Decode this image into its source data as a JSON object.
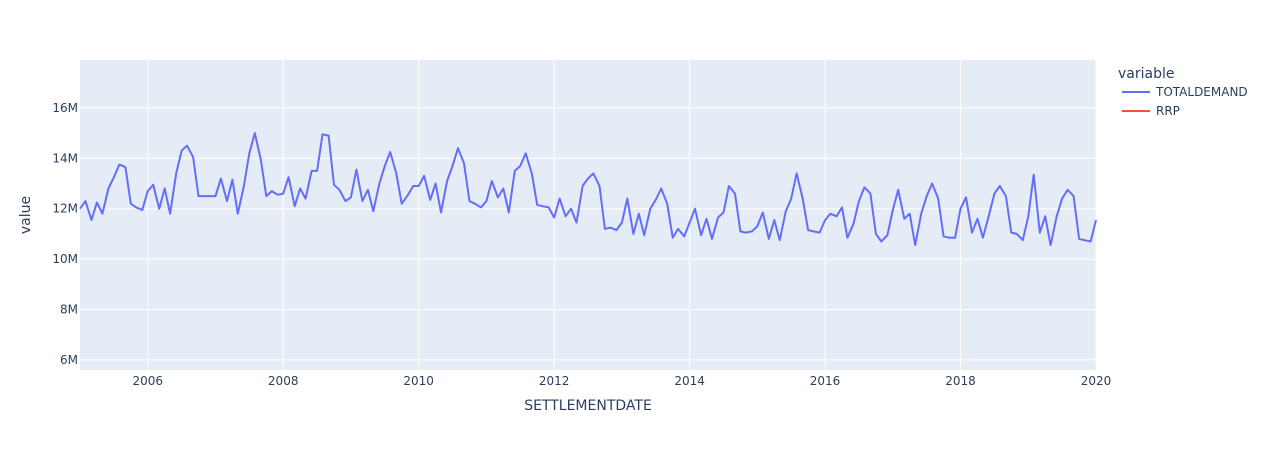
{
  "chart_data": {
    "type": "line",
    "title": "",
    "xlabel": "SETTLEMENTDATE",
    "ylabel": "value",
    "x_ticks": [
      "2006",
      "2008",
      "2010",
      "2012",
      "2014",
      "2016",
      "2018",
      "2020"
    ],
    "y_ticks": [
      "6M",
      "8M",
      "10M",
      "12M",
      "14M",
      "16M"
    ],
    "y_tick_values": [
      6,
      8,
      10,
      12,
      14,
      16
    ],
    "xlim": [
      2005.0,
      2020.0
    ],
    "ylim": [
      5.6,
      17.9
    ],
    "y_unit": "millions",
    "grid": true,
    "legend": {
      "title": "variable",
      "placement": "right"
    },
    "series": [
      {
        "name": "TOTALDEMAND",
        "color": "#636efa",
        "points": [
          [
            2005.0,
            12.0
          ],
          [
            2005.08,
            12.3
          ],
          [
            2005.17,
            11.55
          ],
          [
            2005.25,
            12.25
          ],
          [
            2005.33,
            11.8
          ],
          [
            2005.42,
            12.8
          ],
          [
            2005.5,
            13.25
          ],
          [
            2005.58,
            13.75
          ],
          [
            2005.67,
            13.65
          ],
          [
            2005.75,
            12.2
          ],
          [
            2005.83,
            12.05
          ],
          [
            2005.92,
            11.95
          ],
          [
            2006.0,
            12.7
          ],
          [
            2006.08,
            12.95
          ],
          [
            2006.17,
            12.0
          ],
          [
            2006.25,
            12.8
          ],
          [
            2006.33,
            11.8
          ],
          [
            2006.42,
            13.4
          ],
          [
            2006.5,
            14.3
          ],
          [
            2006.58,
            14.5
          ],
          [
            2006.67,
            14.05
          ],
          [
            2006.75,
            12.5
          ],
          [
            2006.83,
            12.5
          ],
          [
            2006.92,
            12.5
          ],
          [
            2007.0,
            12.5
          ],
          [
            2007.08,
            13.2
          ],
          [
            2007.17,
            12.3
          ],
          [
            2007.25,
            13.15
          ],
          [
            2007.33,
            11.8
          ],
          [
            2007.42,
            12.9
          ],
          [
            2007.5,
            14.2
          ],
          [
            2007.58,
            15.0
          ],
          [
            2007.67,
            13.95
          ],
          [
            2007.75,
            12.5
          ],
          [
            2007.83,
            12.7
          ],
          [
            2007.92,
            12.55
          ],
          [
            2008.0,
            12.6
          ],
          [
            2008.08,
            13.25
          ],
          [
            2008.17,
            12.1
          ],
          [
            2008.25,
            12.8
          ],
          [
            2008.33,
            12.4
          ],
          [
            2008.42,
            13.5
          ],
          [
            2008.5,
            13.5
          ],
          [
            2008.58,
            14.95
          ],
          [
            2008.67,
            14.9
          ],
          [
            2008.75,
            12.95
          ],
          [
            2008.83,
            12.75
          ],
          [
            2008.92,
            12.3
          ],
          [
            2009.0,
            12.45
          ],
          [
            2009.08,
            13.55
          ],
          [
            2009.17,
            12.3
          ],
          [
            2009.25,
            12.75
          ],
          [
            2009.33,
            11.9
          ],
          [
            2009.42,
            13.0
          ],
          [
            2009.5,
            13.7
          ],
          [
            2009.58,
            14.25
          ],
          [
            2009.67,
            13.4
          ],
          [
            2009.75,
            12.2
          ],
          [
            2009.83,
            12.5
          ],
          [
            2009.92,
            12.9
          ],
          [
            2010.0,
            12.9
          ],
          [
            2010.08,
            13.3
          ],
          [
            2010.17,
            12.35
          ],
          [
            2010.25,
            13.0
          ],
          [
            2010.33,
            11.85
          ],
          [
            2010.42,
            13.1
          ],
          [
            2010.5,
            13.7
          ],
          [
            2010.58,
            14.4
          ],
          [
            2010.67,
            13.8
          ],
          [
            2010.75,
            12.3
          ],
          [
            2010.83,
            12.2
          ],
          [
            2010.92,
            12.05
          ],
          [
            2011.0,
            12.3
          ],
          [
            2011.08,
            13.1
          ],
          [
            2011.17,
            12.45
          ],
          [
            2011.25,
            12.8
          ],
          [
            2011.33,
            11.85
          ],
          [
            2011.42,
            13.5
          ],
          [
            2011.5,
            13.7
          ],
          [
            2011.58,
            14.2
          ],
          [
            2011.67,
            13.4
          ],
          [
            2011.75,
            12.15
          ],
          [
            2011.83,
            12.1
          ],
          [
            2011.92,
            12.05
          ],
          [
            2012.0,
            11.65
          ],
          [
            2012.08,
            12.4
          ],
          [
            2012.17,
            11.7
          ],
          [
            2012.25,
            12.0
          ],
          [
            2012.33,
            11.45
          ],
          [
            2012.42,
            12.9
          ],
          [
            2012.5,
            13.2
          ],
          [
            2012.58,
            13.4
          ],
          [
            2012.67,
            12.9
          ],
          [
            2012.75,
            11.2
          ],
          [
            2012.83,
            11.25
          ],
          [
            2012.92,
            11.15
          ],
          [
            2013.0,
            11.45
          ],
          [
            2013.08,
            12.4
          ],
          [
            2013.17,
            11.0
          ],
          [
            2013.25,
            11.8
          ],
          [
            2013.33,
            10.95
          ],
          [
            2013.42,
            12.0
          ],
          [
            2013.5,
            12.35
          ],
          [
            2013.58,
            12.8
          ],
          [
            2013.67,
            12.2
          ],
          [
            2013.75,
            10.85
          ],
          [
            2013.83,
            11.2
          ],
          [
            2013.92,
            10.9
          ],
          [
            2014.0,
            11.45
          ],
          [
            2014.08,
            12.0
          ],
          [
            2014.17,
            10.95
          ],
          [
            2014.25,
            11.6
          ],
          [
            2014.33,
            10.8
          ],
          [
            2014.42,
            11.65
          ],
          [
            2014.5,
            11.85
          ],
          [
            2014.58,
            12.9
          ],
          [
            2014.67,
            12.6
          ],
          [
            2014.75,
            11.1
          ],
          [
            2014.83,
            11.05
          ],
          [
            2014.92,
            11.1
          ],
          [
            2015.0,
            11.3
          ],
          [
            2015.08,
            11.85
          ],
          [
            2015.17,
            10.8
          ],
          [
            2015.25,
            11.55
          ],
          [
            2015.33,
            10.75
          ],
          [
            2015.42,
            11.9
          ],
          [
            2015.5,
            12.4
          ],
          [
            2015.58,
            13.4
          ],
          [
            2015.67,
            12.4
          ],
          [
            2015.75,
            11.15
          ],
          [
            2015.83,
            11.1
          ],
          [
            2015.92,
            11.05
          ],
          [
            2016.0,
            11.55
          ],
          [
            2016.08,
            11.8
          ],
          [
            2016.17,
            11.7
          ],
          [
            2016.25,
            12.05
          ],
          [
            2016.33,
            10.85
          ],
          [
            2016.42,
            11.4
          ],
          [
            2016.5,
            12.3
          ],
          [
            2016.58,
            12.85
          ],
          [
            2016.67,
            12.6
          ],
          [
            2016.75,
            11.0
          ],
          [
            2016.83,
            10.7
          ],
          [
            2016.92,
            10.95
          ],
          [
            2017.0,
            11.95
          ],
          [
            2017.08,
            12.75
          ],
          [
            2017.17,
            11.6
          ],
          [
            2017.25,
            11.8
          ],
          [
            2017.33,
            10.55
          ],
          [
            2017.42,
            11.8
          ],
          [
            2017.5,
            12.5
          ],
          [
            2017.58,
            13.0
          ],
          [
            2017.67,
            12.4
          ],
          [
            2017.75,
            10.9
          ],
          [
            2017.83,
            10.85
          ],
          [
            2017.92,
            10.85
          ],
          [
            2018.0,
            12.0
          ],
          [
            2018.08,
            12.45
          ],
          [
            2018.17,
            11.05
          ],
          [
            2018.25,
            11.6
          ],
          [
            2018.33,
            10.85
          ],
          [
            2018.42,
            11.75
          ],
          [
            2018.5,
            12.6
          ],
          [
            2018.58,
            12.9
          ],
          [
            2018.67,
            12.5
          ],
          [
            2018.75,
            11.05
          ],
          [
            2018.83,
            11.0
          ],
          [
            2018.92,
            10.75
          ],
          [
            2019.0,
            11.7
          ],
          [
            2019.08,
            13.35
          ],
          [
            2019.17,
            11.05
          ],
          [
            2019.25,
            11.7
          ],
          [
            2019.33,
            10.55
          ],
          [
            2019.42,
            11.7
          ],
          [
            2019.5,
            12.4
          ],
          [
            2019.58,
            12.75
          ],
          [
            2019.67,
            12.5
          ],
          [
            2019.75,
            10.8
          ],
          [
            2019.83,
            10.75
          ],
          [
            2019.92,
            10.7
          ],
          [
            2020.0,
            11.55
          ]
        ]
      },
      {
        "name": "RRP",
        "color": "#ef553b",
        "points": []
      }
    ]
  }
}
